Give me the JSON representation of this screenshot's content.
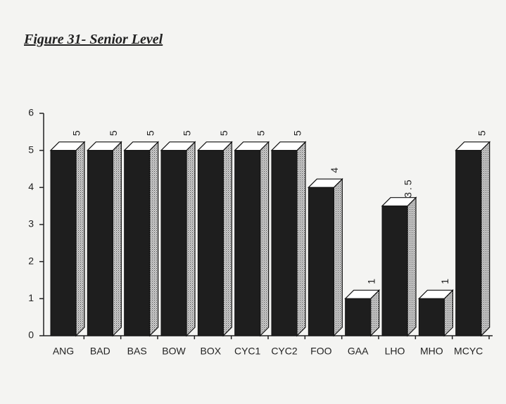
{
  "chart_data": {
    "type": "bar3d",
    "title": "Figure 31- Senior Level",
    "categories": [
      "ANG",
      "BAD",
      "BAS",
      "BOW",
      "BOX",
      "CYC1",
      "CYC2",
      "FOO",
      "GAA",
      "LHO",
      "MHO",
      "MCYC"
    ],
    "values": [
      5,
      5,
      5,
      5,
      5,
      5,
      5,
      4,
      1,
      3.5,
      1,
      5
    ],
    "color": "#1e1e1e",
    "ylim": [
      0,
      6
    ],
    "yticks": [
      0,
      1,
      2,
      3,
      4,
      5,
      6
    ]
  }
}
